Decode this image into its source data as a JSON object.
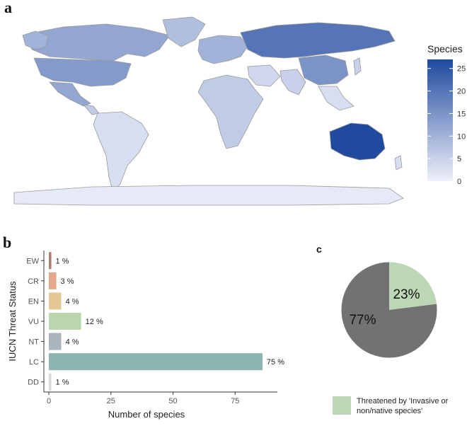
{
  "panels": {
    "a": "a",
    "b": "b",
    "c": "c"
  },
  "map": {
    "legend_title": "Species",
    "legend_ticks": [
      0,
      5,
      10,
      15,
      20,
      25
    ],
    "scale_min": 0,
    "scale_max": 27,
    "color_low": "#eef0fa",
    "color_high": "#1f4a9e",
    "border_color": "#9a9a9a"
  },
  "chart_data": [
    {
      "type": "bar",
      "orientation": "horizontal",
      "categories": [
        "EW",
        "CR",
        "EN",
        "VU",
        "NT",
        "LC",
        "DD"
      ],
      "values": [
        1,
        3,
        5,
        13,
        5,
        86,
        1
      ],
      "data_labels": [
        "1 %",
        "3 %",
        "4 %",
        "12 %",
        "4 %",
        "75 %",
        "1 %"
      ],
      "colors": [
        "#b07a6c",
        "#e4a88a",
        "#e3c795",
        "#b9d6ae",
        "#aab4bd",
        "#8bb5b0",
        "#d8d8d8"
      ],
      "xlabel": "Number of species",
      "ylabel": "IUCN Threat Status",
      "xlim": [
        -2,
        92
      ],
      "xticks": [
        0,
        25,
        50,
        75
      ]
    },
    {
      "type": "pie",
      "labels": [
        "23%",
        "77%"
      ],
      "values": [
        23,
        77
      ],
      "colors": [
        "#bcd7b5",
        "#727272"
      ],
      "legend": [
        {
          "color": "#bcd7b5",
          "lines": [
            "Threatened by 'Invasive or",
            "non/native species'"
          ]
        }
      ]
    }
  ]
}
